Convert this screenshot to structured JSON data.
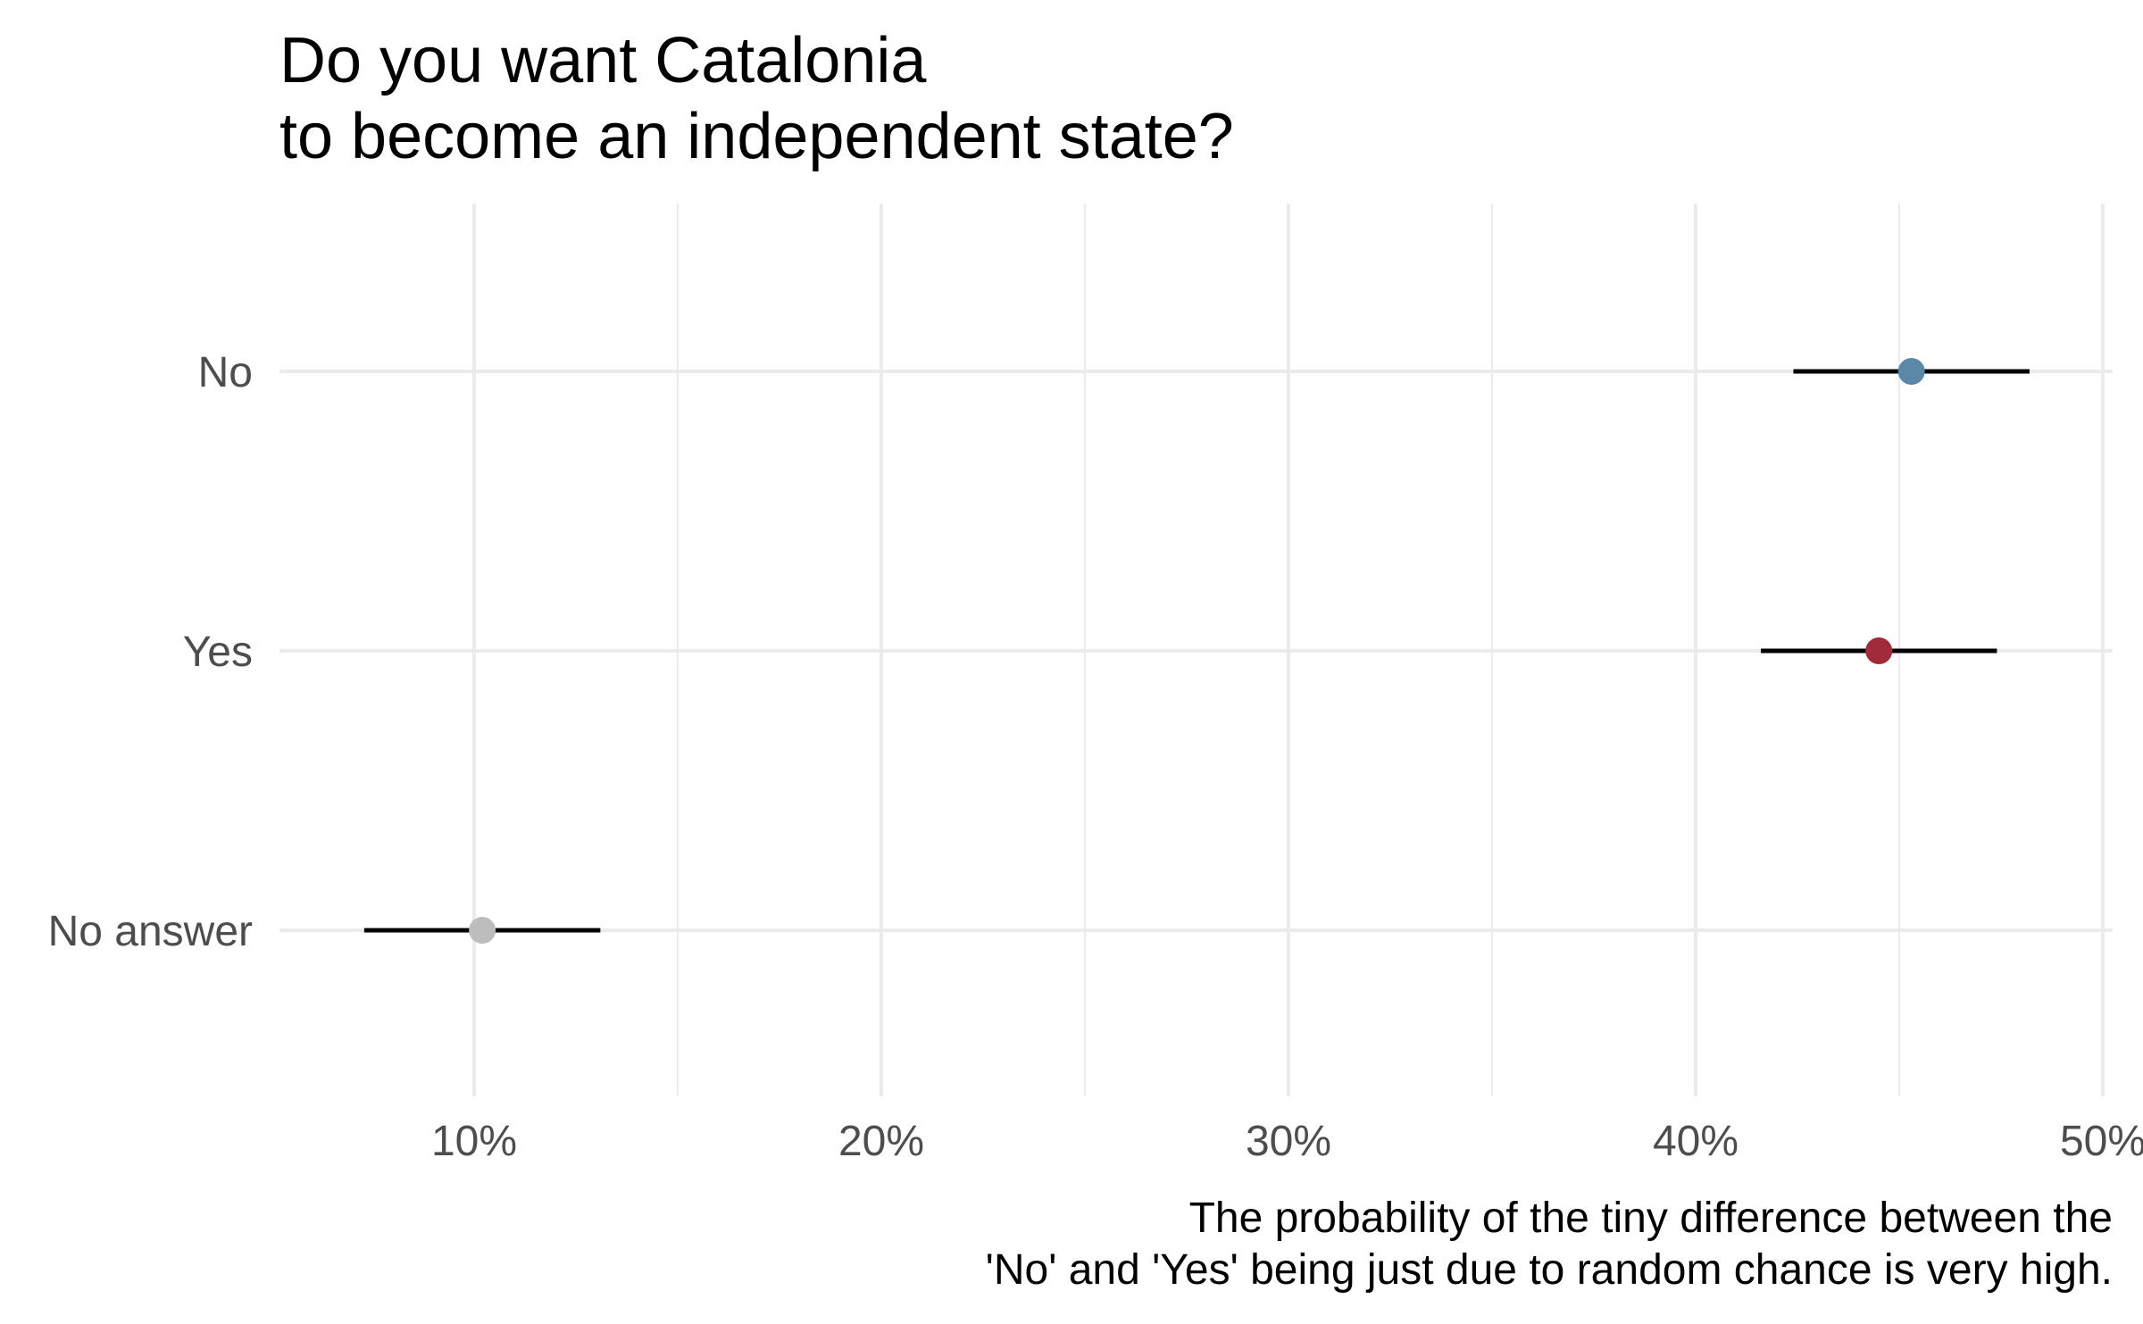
{
  "chart_data": {
    "type": "scatter",
    "title_lines": [
      "Do you want Catalonia",
      "to become an independent state?"
    ],
    "caption_lines": [
      "The probability of the tiny difference between the",
      "'No' and 'Yes' being just due to random chance is very high."
    ],
    "x_scale": "percent",
    "xlim": [
      0.045,
      0.5
    ],
    "x_ticks": [
      {
        "value": 0.1,
        "label": "10%"
      },
      {
        "value": 0.2,
        "label": "20%"
      },
      {
        "value": 0.3,
        "label": "30%"
      },
      {
        "value": 0.4,
        "label": "40%"
      },
      {
        "value": 0.5,
        "label": "50%"
      }
    ],
    "x_minor_ticks": [
      0.15,
      0.25,
      0.35,
      0.45
    ],
    "grid": true,
    "legend": "none",
    "categories": [
      "No",
      "Yes",
      "No answer"
    ],
    "points": [
      {
        "category": "No",
        "estimate": 0.453,
        "low": 0.424,
        "high": 0.482,
        "color": "#5b87a8"
      },
      {
        "category": "Yes",
        "estimate": 0.445,
        "low": 0.416,
        "high": 0.474,
        "color": "#a12b3b"
      },
      {
        "category": "No answer",
        "estimate": 0.102,
        "low": 0.073,
        "high": 0.131,
        "color": "#bdbdbd"
      }
    ],
    "errorbar_color": "#000000",
    "grid_color": "#ebebeb"
  }
}
